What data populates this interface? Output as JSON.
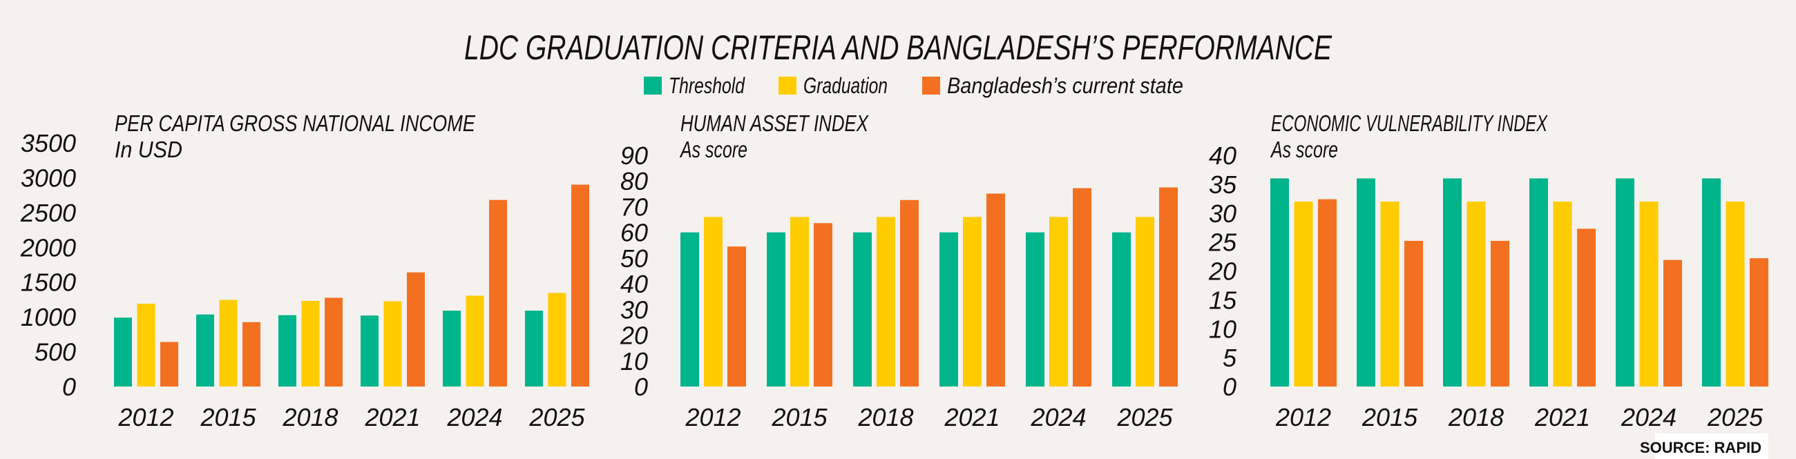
{
  "title": "LDC GRADUATION CRITERIA AND BANGLADESH’S PERFORMANCE",
  "legend": [
    {
      "label": "Threshold",
      "color": "#00b48c"
    },
    {
      "label": "Graduation",
      "color": "#ffcc00"
    },
    {
      "label": "Bangladesh’s current state",
      "color": "#f37021"
    }
  ],
  "source": "SOURCE: RAPID",
  "chart_data": [
    {
      "type": "bar",
      "title": "PER CAPITA GROSS NATIONAL INCOME",
      "subtitle": "In USD",
      "categories": [
        "2012",
        "2015",
        "2018",
        "2021",
        "2024",
        "2025"
      ],
      "ylim": [
        0,
        3500
      ],
      "yticks": [
        0,
        500,
        1000,
        1500,
        2000,
        2500,
        3000,
        3500
      ],
      "grid": false,
      "series": [
        {
          "name": "Threshold",
          "values": [
            990,
            1035,
            1025,
            1020,
            1090,
            1090
          ]
        },
        {
          "name": "Graduation",
          "values": [
            1190,
            1245,
            1230,
            1225,
            1305,
            1345
          ]
        },
        {
          "name": "Bangladesh’s current state",
          "values": [
            640,
            925,
            1275,
            1640,
            2680,
            2900
          ]
        }
      ]
    },
    {
      "type": "bar",
      "title": "HUMAN ASSET INDEX",
      "subtitle": "As score",
      "categories": [
        "2012",
        "2015",
        "2018",
        "2021",
        "2024",
        "2025"
      ],
      "ylim": [
        0,
        90
      ],
      "yticks": [
        0,
        10,
        20,
        30,
        40,
        50,
        60,
        70,
        80,
        90
      ],
      "grid": false,
      "series": [
        {
          "name": "Threshold",
          "values": [
            60,
            60,
            60,
            60,
            60,
            60
          ]
        },
        {
          "name": "Graduation",
          "values": [
            66,
            66,
            66,
            66,
            66,
            66
          ]
        },
        {
          "name": "Bangladesh’s current state",
          "values": [
            54.5,
            63.6,
            72.6,
            75.1,
            77.2,
            77.5
          ]
        }
      ]
    },
    {
      "type": "bar",
      "title": "ECONOMIC VULNERABILITY INDEX",
      "subtitle": "As score",
      "categories": [
        "2012",
        "2015",
        "2018",
        "2021",
        "2024",
        "2025"
      ],
      "ylim": [
        0,
        40
      ],
      "yticks": [
        0,
        5,
        10,
        15,
        20,
        25,
        30,
        35,
        40
      ],
      "grid": false,
      "series": [
        {
          "name": "Threshold",
          "values": [
            36,
            36,
            36,
            36,
            36,
            36
          ]
        },
        {
          "name": "Graduation",
          "values": [
            32,
            32,
            32,
            32,
            32,
            32
          ]
        },
        {
          "name": "Bangladesh’s current state",
          "values": [
            32.4,
            25.2,
            25.2,
            27.3,
            21.9,
            22.2
          ]
        }
      ]
    }
  ]
}
